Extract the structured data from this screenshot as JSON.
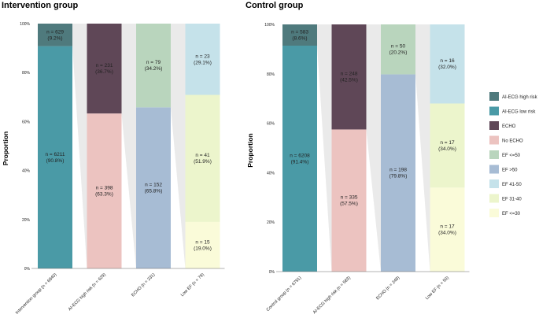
{
  "chart_data": [
    {
      "type": "bar",
      "title": "Intervention group",
      "ylabel": "Proportion",
      "ylim": [
        0,
        100
      ],
      "yticks": [
        "0%",
        "20%",
        "40%",
        "60%",
        "80%",
        "100%"
      ],
      "categories": [
        "Intervention group (n = 6840)",
        "AI-ECG high risk (n = 629)",
        "ECHO (n = 231)",
        "Low EF (n = 79)"
      ],
      "stacks": [
        {
          "category": 0,
          "segments": [
            {
              "series": "AI-ECG low risk",
              "value": 90.8,
              "label": "n = 6211\n(90.8%)"
            },
            {
              "series": "AI-ECG high risk",
              "value": 9.2,
              "label": "n = 629\n(9.2%)"
            }
          ]
        },
        {
          "category": 1,
          "segments": [
            {
              "series": "No ECHO",
              "value": 63.3,
              "label": "n = 398\n(63.3%)"
            },
            {
              "series": "ECHO",
              "value": 36.7,
              "label": "n = 231\n(36.7%)"
            }
          ]
        },
        {
          "category": 2,
          "segments": [
            {
              "series": "EF >50",
              "value": 65.8,
              "label": "n = 152\n(65.8%)"
            },
            {
              "series": "EF <=50",
              "value": 34.2,
              "label": "n = 79\n(34.2%)"
            }
          ]
        },
        {
          "category": 3,
          "segments": [
            {
              "series": "EF <=30",
              "value": 19.0,
              "label": "n = 15\n(19.0%)"
            },
            {
              "series": "EF 31-40",
              "value": 51.9,
              "label": "n = 41\n(51.9%)"
            },
            {
              "series": "EF 41-50",
              "value": 29.1,
              "label": "n = 23\n(29.1%)"
            }
          ]
        }
      ]
    },
    {
      "type": "bar",
      "title": "Control group",
      "ylabel": "Proportion",
      "ylim": [
        0,
        100
      ],
      "yticks": [
        "0%",
        "20%",
        "40%",
        "60%",
        "80%",
        "100%"
      ],
      "categories": [
        "Control group (n = 6791)",
        "AI-ECG high risk (n = 583)",
        "ECHO (n = 248)",
        "Low EF (n = 50)"
      ],
      "stacks": [
        {
          "category": 0,
          "segments": [
            {
              "series": "AI-ECG low risk",
              "value": 91.4,
              "label": "n = 6208\n(91.4%)"
            },
            {
              "series": "AI-ECG high risk",
              "value": 8.6,
              "label": "n = 583\n(8.6%)"
            }
          ]
        },
        {
          "category": 1,
          "segments": [
            {
              "series": "No ECHO",
              "value": 57.5,
              "label": "n = 335\n(57.5%)"
            },
            {
              "series": "ECHO",
              "value": 42.5,
              "label": "n = 248\n(42.5%)"
            }
          ]
        },
        {
          "category": 2,
          "segments": [
            {
              "series": "EF >50",
              "value": 79.8,
              "label": "n = 198\n(79.8%)"
            },
            {
              "series": "EF <=50",
              "value": 20.2,
              "label": "n = 50\n(20.2%)"
            }
          ]
        },
        {
          "category": 3,
          "segments": [
            {
              "series": "EF <=30",
              "value": 34.0,
              "label": "n = 17\n(34.0%)"
            },
            {
              "series": "EF 31-40",
              "value": 34.0,
              "label": "n = 17\n(34.0%)"
            },
            {
              "series": "EF 41-50",
              "value": 32.0,
              "label": "n = 16\n(32.0%)"
            }
          ]
        }
      ]
    }
  ],
  "legend": {
    "position": "right",
    "items": [
      {
        "name": "AI-ECG high risk",
        "color": "#4f7a7d"
      },
      {
        "name": "AI-ECG low risk",
        "color": "#4a9aa6"
      },
      {
        "name": "ECHO",
        "color": "#5f4757"
      },
      {
        "name": "No ECHO",
        "color": "#ecc3c0"
      },
      {
        "name": "EF <=50",
        "color": "#b9d5bd"
      },
      {
        "name": "EF >50",
        "color": "#a7bcd4"
      },
      {
        "name": "EF 41-50",
        "color": "#c5e2ea"
      },
      {
        "name": "EF 31-40",
        "color": "#ecf5cc"
      },
      {
        "name": "EF <=30",
        "color": "#fafbd9"
      }
    ]
  },
  "connector_color": "#e3e3e3"
}
